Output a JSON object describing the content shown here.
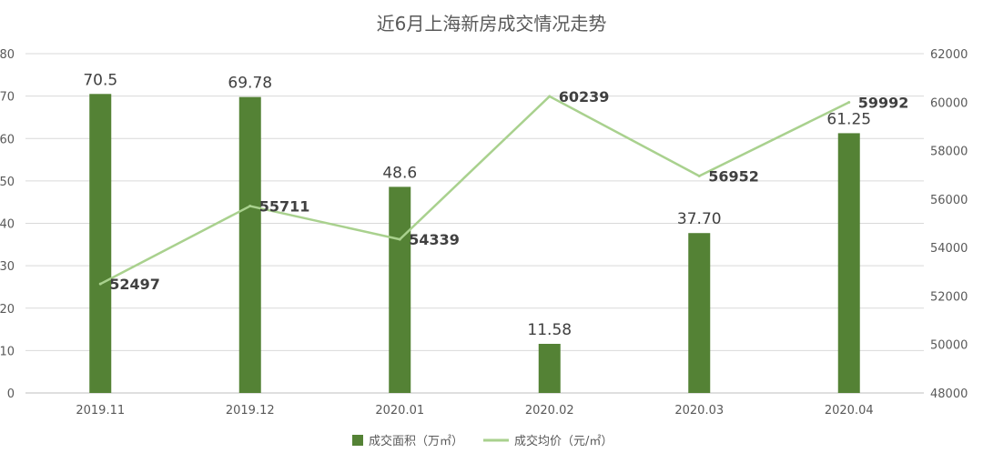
{
  "chart_data": {
    "type": "bar",
    "title": "近6月上海新房成交情况走势",
    "categories": [
      "2019.11",
      "2019.12",
      "2020.01",
      "2020.02",
      "2020.03",
      "2020.04"
    ],
    "series": [
      {
        "name": "成交面积（万㎡）",
        "type": "bar",
        "axis": "left",
        "color": "#548235",
        "values": [
          70.5,
          69.78,
          48.6,
          11.58,
          37.7,
          61.25
        ],
        "labels": [
          "70.5",
          "69.78",
          "48.6",
          "11.58",
          "37.70",
          "61.25"
        ]
      },
      {
        "name": "成交均价（元/㎡）",
        "type": "line",
        "axis": "right",
        "color": "#a9d18e",
        "values": [
          52497,
          55711,
          54339,
          60239,
          56952,
          59992
        ],
        "labels": [
          "52497",
          "55711",
          "54339",
          "60239",
          "56952",
          "59992"
        ]
      }
    ],
    "y_left": {
      "min": 0,
      "max": 80,
      "ticks": [
        "0",
        "10",
        "20",
        "30",
        "40",
        "50",
        "60",
        "70",
        "80"
      ]
    },
    "y_right": {
      "min": 48000,
      "max": 62000,
      "ticks": [
        "48000",
        "50000",
        "52000",
        "54000",
        "56000",
        "58000",
        "60000",
        "62000"
      ]
    },
    "grid": true,
    "legend": "bottom"
  }
}
